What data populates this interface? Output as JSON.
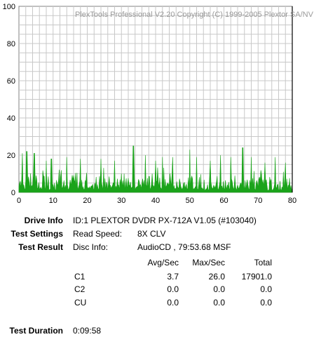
{
  "chart_data": {
    "type": "area",
    "title": "PlexTools Professional V2.20 Copyright (C) 1999-2005 Plextor SA/NV",
    "xlim": [
      0,
      80
    ],
    "ylim": [
      0,
      100
    ],
    "x_ticks": [
      "0",
      "10",
      "20",
      "30",
      "40",
      "50",
      "60",
      "70",
      "80"
    ],
    "y_ticks": [
      "0",
      "20",
      "40",
      "60",
      "80",
      "100"
    ],
    "grid": true,
    "series": [
      {
        "color": "#1aa31a",
        "avg": 3.7,
        "max": 26.0,
        "peaks": [
          [
            1,
            21
          ],
          [
            2.3,
            22
          ],
          [
            4.5,
            21
          ],
          [
            8,
            17
          ],
          [
            9.5,
            18
          ],
          [
            14,
            19
          ],
          [
            18,
            18
          ],
          [
            24,
            18
          ],
          [
            28,
            17
          ],
          [
            33.5,
            25
          ],
          [
            37,
            20
          ],
          [
            40,
            17
          ],
          [
            42,
            19
          ],
          [
            45,
            19
          ],
          [
            50,
            23
          ],
          [
            52,
            19
          ],
          [
            56,
            17
          ],
          [
            59,
            20
          ],
          [
            62,
            19
          ],
          [
            65.5,
            24
          ],
          [
            68,
            19
          ],
          [
            72,
            16
          ],
          [
            75,
            19
          ],
          [
            78,
            16
          ]
        ]
      }
    ],
    "end_marker_x": 80
  },
  "drive_info": {
    "label": "Drive Info",
    "value": "ID:1 PLEXTOR DVDR PX-712A V1.05 (#103040)"
  },
  "test_settings": {
    "label": "Test Settings",
    "read_speed_label": "Read Speed:",
    "read_speed_value": "8X CLV"
  },
  "test_result": {
    "label": "Test Result",
    "disc_info_label": "Disc Info:",
    "disc_info_value": "AudioCD , 79:53.68 MSF"
  },
  "results_table": {
    "headers": [
      "Avg/Sec",
      "Max/Sec",
      "Total"
    ],
    "rows": [
      {
        "name": "C1",
        "avg": "3.7",
        "max": "26.0",
        "total": "17901.0"
      },
      {
        "name": "C2",
        "avg": "0.0",
        "max": "0.0",
        "total": "0.0"
      },
      {
        "name": "CU",
        "avg": "0.0",
        "max": "0.0",
        "total": "0.0"
      }
    ]
  },
  "test_duration": {
    "label": "Test Duration",
    "value": "0:09:58"
  }
}
